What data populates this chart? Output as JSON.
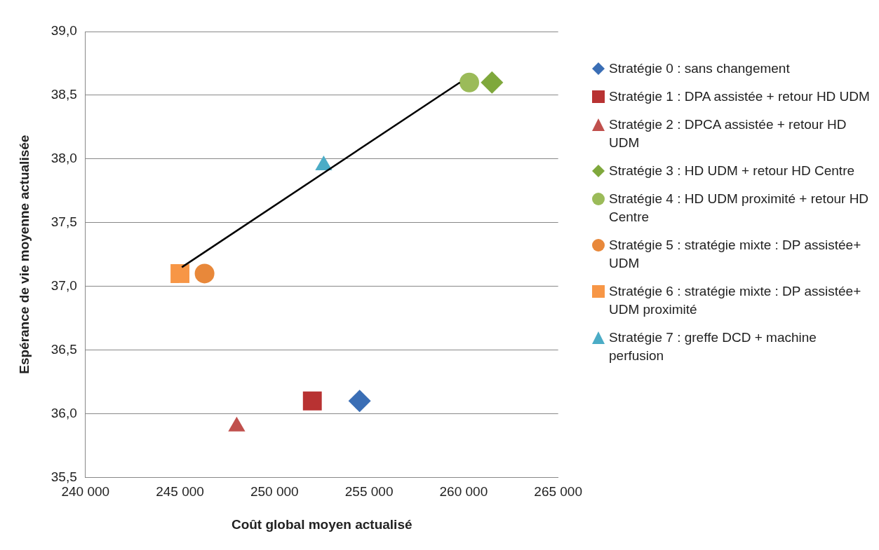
{
  "chart_data": {
    "type": "scatter",
    "xlabel": "Coût global moyen actualisé",
    "ylabel": "Espérance de vie moyenne actualisée",
    "xlim": [
      240000,
      265000
    ],
    "xticks": [
      {
        "value": 240000,
        "label": "240 000"
      },
      {
        "value": 245000,
        "label": "245 000"
      },
      {
        "value": 250000,
        "label": "250 000"
      },
      {
        "value": 255000,
        "label": "255 000"
      },
      {
        "value": 260000,
        "label": "260 000"
      },
      {
        "value": 265000,
        "label": "265 000"
      }
    ],
    "ylim": [
      35.5,
      39
    ],
    "yticks": [
      {
        "value": 35.5,
        "label": "35,5"
      },
      {
        "value": 36,
        "label": "36,0"
      },
      {
        "value": 36.5,
        "label": "36,5"
      },
      {
        "value": 37,
        "label": "37,0"
      },
      {
        "value": 37.5,
        "label": "37,5"
      },
      {
        "value": 38,
        "label": "38,0"
      },
      {
        "value": 38.5,
        "label": "38,5"
      },
      {
        "value": 39,
        "label": "39,0"
      }
    ],
    "grid": "y",
    "legend": "right",
    "series": [
      {
        "name": "Stratégie 0 : sans changement",
        "color": "#3a6eb5",
        "marker": "diamond",
        "x": [
          254500
        ],
        "values": [
          36.1
        ]
      },
      {
        "name": "Stratégie 1 : DPA assistée + retour HD UDM",
        "color": "#b83232",
        "marker": "square",
        "x": [
          252000
        ],
        "values": [
          36.1
        ]
      },
      {
        "name": "Stratégie 2 : DPCA assistée + retour HD UDM",
        "color": "#c0504d",
        "marker": "triangle",
        "x": [
          248000
        ],
        "values": [
          35.9
        ]
      },
      {
        "name": "Stratégie 3 : HD UDM + retour HD Centre",
        "color": "#7fa83c",
        "marker": "diamond",
        "x": [
          261500
        ],
        "values": [
          38.6
        ]
      },
      {
        "name": "Stratégie 4 :  HD UDM proximité + retour HD Centre",
        "color": "#9bbb59",
        "marker": "circle",
        "x": [
          260300
        ],
        "values": [
          38.6
        ]
      },
      {
        "name": "Stratégie 5 : stratégie mixte :  DP assistée+ UDM",
        "color": "#e8883a",
        "marker": "circle",
        "x": [
          246300
        ],
        "values": [
          37.1
        ]
      },
      {
        "name": "Stratégie 6 : stratégie mixte :  DP assistée+ UDM proximité",
        "color": "#f79646",
        "marker": "square",
        "x": [
          245000
        ],
        "values": [
          37.1
        ]
      },
      {
        "name": "Stratégie 7 : greffe DCD +  machine perfusion",
        "color": "#4bacc6",
        "marker": "triangle",
        "x": [
          252600
        ],
        "values": [
          37.95
        ]
      },
      {
        "type": "line",
        "color": "#000000",
        "marker": "none",
        "x": [
          245100,
          259800
        ],
        "values": [
          37.15,
          38.6
        ]
      }
    ]
  }
}
